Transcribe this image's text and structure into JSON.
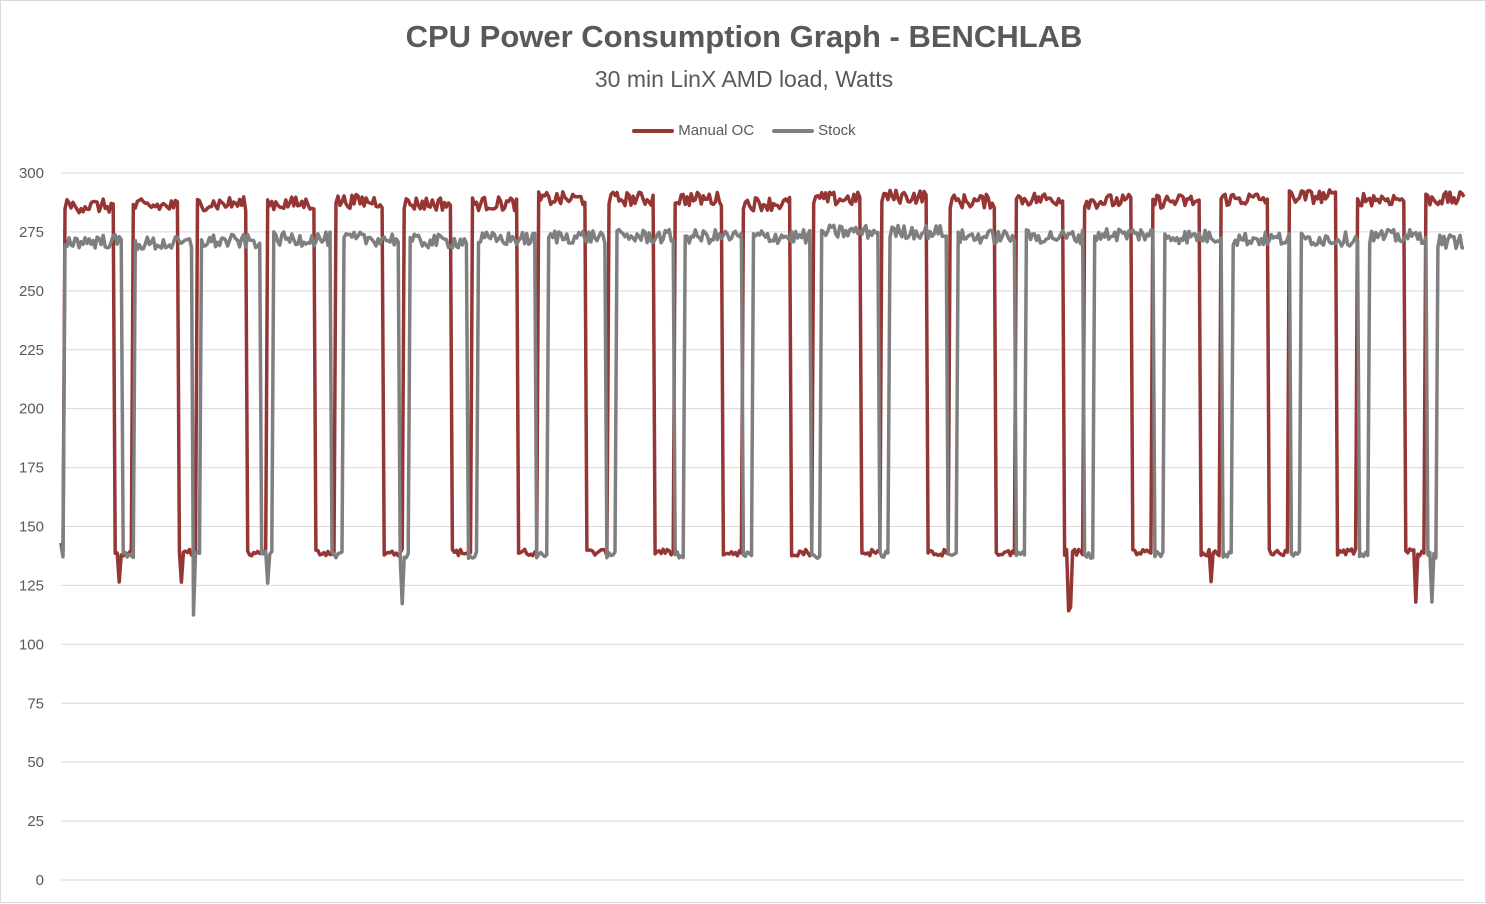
{
  "chart_data": {
    "type": "line",
    "title": "CPU Power Consumption Graph - BENCHLAB",
    "subtitle": "30 min LinX AMD load, Watts",
    "xlabel": "",
    "ylabel": "",
    "ylim": [
      0,
      300
    ],
    "yticks": [
      0,
      25,
      50,
      75,
      100,
      125,
      150,
      175,
      200,
      225,
      250,
      275,
      300
    ],
    "grid": true,
    "legend_position": "top-center",
    "x_points": 700,
    "series": [
      {
        "name": "Manual OC",
        "color": "#963634",
        "idle_level": 139,
        "load_pattern": [
          {
            "high_start": 2,
            "high_end": 26,
            "level": 286
          },
          {
            "high_start": 36,
            "high_end": 58,
            "level": 286
          },
          {
            "high_start": 68,
            "high_end": 92,
            "level": 287
          },
          {
            "high_start": 103,
            "high_end": 126,
            "level": 287
          },
          {
            "high_start": 137,
            "high_end": 160,
            "level": 288
          },
          {
            "high_start": 171,
            "high_end": 194,
            "level": 287
          },
          {
            "high_start": 205,
            "high_end": 227,
            "level": 287
          },
          {
            "high_start": 238,
            "high_end": 261,
            "level": 289
          },
          {
            "high_start": 273,
            "high_end": 295,
            "level": 289
          },
          {
            "high_start": 306,
            "high_end": 329,
            "level": 289
          },
          {
            "high_start": 340,
            "high_end": 363,
            "level": 287
          },
          {
            "high_start": 375,
            "high_end": 398,
            "level": 289
          },
          {
            "high_start": 409,
            "high_end": 431,
            "level": 290
          },
          {
            "high_start": 443,
            "high_end": 465,
            "level": 288
          },
          {
            "high_start": 476,
            "high_end": 499,
            "level": 289
          },
          {
            "high_start": 510,
            "high_end": 533,
            "level": 288
          },
          {
            "high_start": 544,
            "high_end": 567,
            "level": 288
          },
          {
            "high_start": 578,
            "high_end": 601,
            "level": 289
          },
          {
            "high_start": 612,
            "high_end": 635,
            "level": 290
          },
          {
            "high_start": 646,
            "high_end": 669,
            "level": 289
          },
          {
            "high_start": 680,
            "high_end": 700,
            "level": 289
          }
        ]
      },
      {
        "name": "Stock",
        "color": "#7f7f7f",
        "idle_level": 138,
        "load_pattern": [
          {
            "high_start": 2,
            "high_end": 30,
            "level": 271
          },
          {
            "high_start": 37,
            "high_end": 65,
            "level": 270
          },
          {
            "high_start": 70,
            "high_end": 99,
            "level": 271
          },
          {
            "high_start": 106,
            "high_end": 134,
            "level": 272
          },
          {
            "high_start": 141,
            "high_end": 168,
            "level": 272
          },
          {
            "high_start": 174,
            "high_end": 202,
            "level": 271
          },
          {
            "high_start": 208,
            "high_end": 236,
            "level": 272
          },
          {
            "high_start": 243,
            "high_end": 271,
            "level": 273
          },
          {
            "high_start": 277,
            "high_end": 305,
            "level": 273
          },
          {
            "high_start": 311,
            "high_end": 339,
            "level": 273
          },
          {
            "high_start": 345,
            "high_end": 373,
            "level": 273
          },
          {
            "high_start": 379,
            "high_end": 407,
            "level": 275
          },
          {
            "high_start": 413,
            "high_end": 441,
            "level": 275
          },
          {
            "high_start": 447,
            "high_end": 475,
            "level": 273
          },
          {
            "high_start": 481,
            "high_end": 509,
            "level": 273
          },
          {
            "high_start": 515,
            "high_end": 544,
            "level": 274
          },
          {
            "high_start": 550,
            "high_end": 578,
            "level": 273
          },
          {
            "high_start": 584,
            "high_end": 612,
            "level": 272
          },
          {
            "high_start": 618,
            "high_end": 646,
            "level": 272
          },
          {
            "high_start": 652,
            "high_end": 680,
            "level": 273
          },
          {
            "high_start": 686,
            "high_end": 700,
            "level": 271
          }
        ]
      }
    ]
  }
}
